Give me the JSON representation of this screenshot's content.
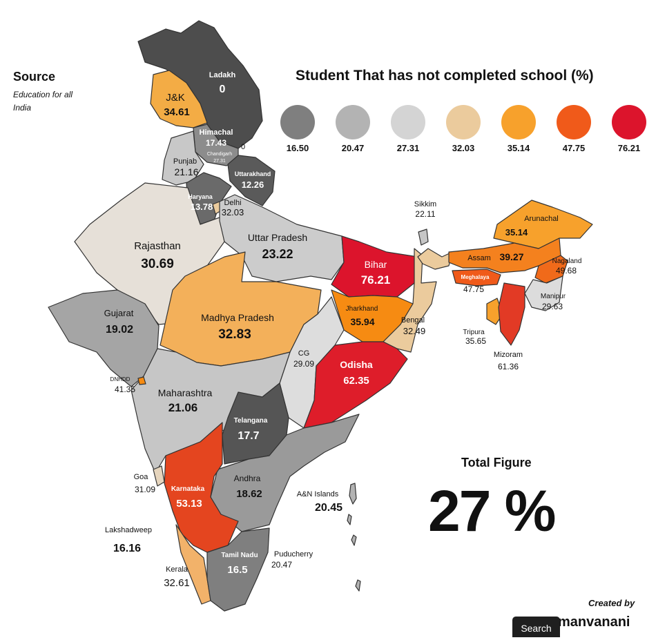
{
  "source": {
    "title": "Source",
    "subtitle": "Education for all India"
  },
  "legend": {
    "title": "Student That has not completed school (%)",
    "items": [
      {
        "value": "16.50",
        "color": "#7f7f7f"
      },
      {
        "value": "20.47",
        "color": "#b3b3b3"
      },
      {
        "value": "27.31",
        "color": "#d4d4d4"
      },
      {
        "value": "32.03",
        "color": "#ebcb9d"
      },
      {
        "value": "35.14",
        "color": "#f7a12c"
      },
      {
        "value": "47.75",
        "color": "#f05a1a"
      },
      {
        "value": "76.21",
        "color": "#dc142c"
      }
    ]
  },
  "total": {
    "title": "Total Figure",
    "value": "27 %"
  },
  "credit": {
    "created_by": "Created by",
    "brand": "manvanani"
  },
  "search_button": "Search",
  "map": {
    "states": [
      {
        "name": "Ladakh",
        "value": "0",
        "color": "#4d4d4d"
      },
      {
        "name": "J&K",
        "value": "34.61",
        "color": "#f3ac45"
      },
      {
        "name": "Himachal",
        "value": "17.43",
        "color": "#8c8c8c"
      },
      {
        "name": "Chandigarh",
        "value": "27.31",
        "color": "#8c8c8c"
      },
      {
        "name": "Punjab",
        "value": "21.16",
        "color": "#c8c8c8"
      },
      {
        "name": "Uttarakhand",
        "value": "12.26",
        "color": "#5a5a5a"
      },
      {
        "name": "Haryana",
        "value": "13.78",
        "color": "#6a6a6a"
      },
      {
        "name": "Delhi",
        "value": "32.03",
        "color": "#ebcb9d"
      },
      {
        "name": "Rajasthan",
        "value": "30.69",
        "color": "#e6e0d8"
      },
      {
        "name": "Uttar Pradesh",
        "value": "23.22",
        "color": "#cccccc"
      },
      {
        "name": "Bihar",
        "value": "76.21",
        "color": "#dc142c"
      },
      {
        "name": "Sikkim",
        "value": "22.11",
        "color": "#c6c6c6"
      },
      {
        "name": "Arunachal",
        "value": "35.14",
        "color": "#f7a12c"
      },
      {
        "name": "Assam",
        "value": "39.27",
        "color": "#f4811e"
      },
      {
        "name": "Meghalaya",
        "value": "47.75",
        "color": "#f05a1a"
      },
      {
        "name": "Nagaland",
        "value": "49.68",
        "color": "#f06a1a"
      },
      {
        "name": "Manipur",
        "value": "29.63",
        "color": "#dcdcdc"
      },
      {
        "name": "Tripura",
        "value": "35.65",
        "color": "#f7a12c"
      },
      {
        "name": "Mizoram",
        "value": "61.36",
        "color": "#e23a25"
      },
      {
        "name": "Gujarat",
        "value": "19.02",
        "color": "#a5a5a5"
      },
      {
        "name": "Madhya Pradesh",
        "value": "32.83",
        "color": "#f3b05a"
      },
      {
        "name": "Jharkhand",
        "value": "35.94",
        "color": "#f68b12"
      },
      {
        "name": "Bengal",
        "value": "32.49",
        "color": "#ebcb9d"
      },
      {
        "name": "CG",
        "value": "29.09",
        "color": "#dddddd"
      },
      {
        "name": "Odisha",
        "value": "62.35",
        "color": "#de1d2a"
      },
      {
        "name": "DNHDD",
        "value": "41.35",
        "color": "#f68b12"
      },
      {
        "name": "Maharashtra",
        "value": "21.06",
        "color": "#c6c6c6"
      },
      {
        "name": "Telangana",
        "value": "17.7",
        "color": "#555555"
      },
      {
        "name": "Goa",
        "value": "31.09",
        "color": "#e6d5bd"
      },
      {
        "name": "Karnataka",
        "value": "53.13",
        "color": "#e4451f"
      },
      {
        "name": "Andhra",
        "value": "18.62",
        "color": "#9a9a9a"
      },
      {
        "name": "A&N Islands",
        "value": "20.45",
        "color": "#b3b3b3"
      },
      {
        "name": "Lakshadweep",
        "value": "16.16",
        "color": "#888888"
      },
      {
        "name": "Kerala",
        "value": "32.61",
        "color": "#f2b26a"
      },
      {
        "name": "Tamil Nadu",
        "value": "16.5",
        "color": "#7f7f7f"
      },
      {
        "name": "Puducherry",
        "value": "20.47",
        "color": "#b3b3b3"
      }
    ]
  }
}
